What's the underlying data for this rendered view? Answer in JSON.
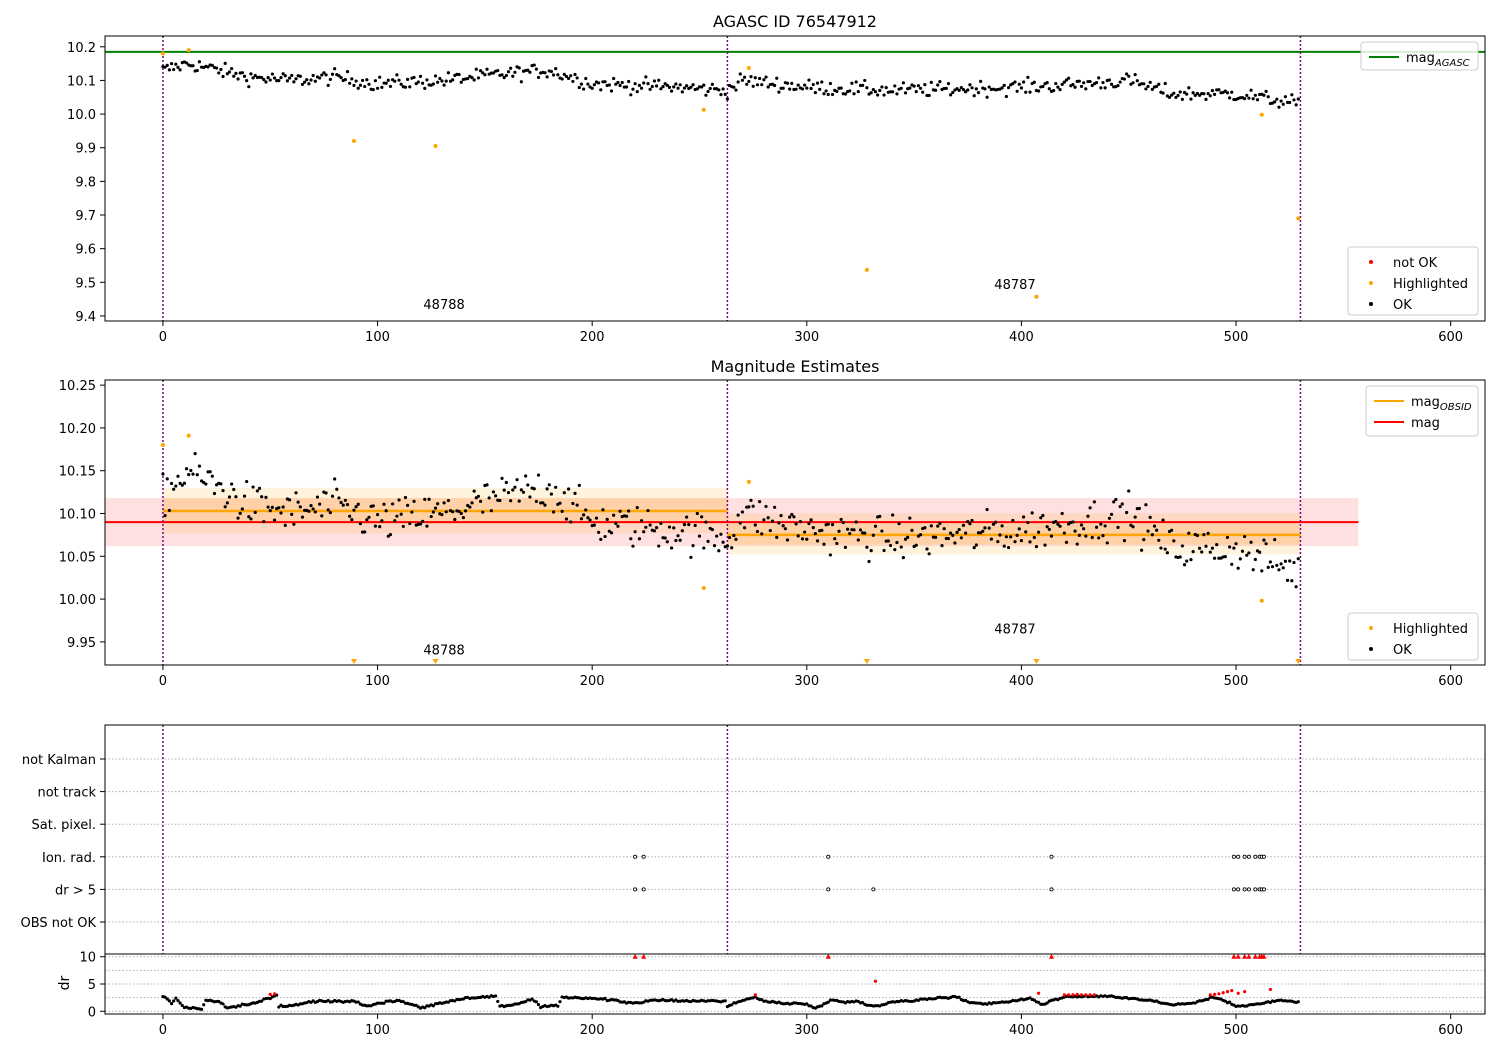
{
  "chart_data": [
    {
      "type": "scatter",
      "title": "AGASC ID 76547912",
      "xlabel": "",
      "ylabel": "",
      "xlim": [
        -27,
        616
      ],
      "ylim": [
        9.385,
        10.232
      ],
      "xticks": [
        "0",
        "100",
        "200",
        "300",
        "400",
        "500",
        "600"
      ],
      "yticks": [
        "9.4",
        "9.5",
        "9.6",
        "9.7",
        "9.8",
        "9.9",
        "10.0",
        "10.1",
        "10.2"
      ],
      "grid": false,
      "legends": [
        {
          "placement": "top-right",
          "entries": [
            {
              "label": "mag",
              "sub": "AGASC",
              "color": "#008000",
              "kind": "line"
            }
          ]
        },
        {
          "placement": "bottom-right",
          "entries": [
            {
              "label": "not OK",
              "color": "#ff0000",
              "kind": "dot"
            },
            {
              "label": "Highlighted",
              "color": "#ffa500",
              "kind": "dot"
            },
            {
              "label": "OK",
              "color": "#000000",
              "kind": "dot"
            }
          ]
        }
      ],
      "reference_lines": [
        {
          "name": "mag_AGASC",
          "y": 10.185,
          "color": "#008000"
        }
      ],
      "obsid_boundaries": [
        0,
        263,
        530
      ],
      "annotations": [
        {
          "text": "48788",
          "x": 131,
          "y": 9.42
        },
        {
          "text": "48787",
          "x": 397,
          "y": 9.48
        }
      ],
      "highlighted_points": [
        {
          "x": 0,
          "y": 10.18
        },
        {
          "x": 12,
          "y": 10.19
        },
        {
          "x": 89,
          "y": 9.92
        },
        {
          "x": 127,
          "y": 9.905
        },
        {
          "x": 252,
          "y": 10.013
        },
        {
          "x": 273,
          "y": 10.137
        },
        {
          "x": 328,
          "y": 9.537
        },
        {
          "x": 407,
          "y": 9.457
        },
        {
          "x": 512,
          "y": 9.998
        },
        {
          "x": 529,
          "y": 9.69
        }
      ],
      "ok_trend": [
        [
          0,
          10.13
        ],
        [
          12,
          10.15
        ],
        [
          40,
          10.11
        ],
        [
          60,
          10.1
        ],
        [
          80,
          10.11
        ],
        [
          100,
          10.09
        ],
        [
          130,
          10.1
        ],
        [
          160,
          10.12
        ],
        [
          180,
          10.13
        ],
        [
          200,
          10.09
        ],
        [
          240,
          10.08
        ],
        [
          263,
          10.07
        ],
        [
          270,
          10.1
        ],
        [
          300,
          10.08
        ],
        [
          340,
          10.07
        ],
        [
          400,
          10.08
        ],
        [
          430,
          10.09
        ],
        [
          450,
          10.1
        ],
        [
          470,
          10.06
        ],
        [
          500,
          10.06
        ],
        [
          530,
          10.03
        ]
      ],
      "ok_point_count": 530
    },
    {
      "type": "scatter",
      "title": "Magnitude Estimates",
      "xlabel": "",
      "ylabel": "",
      "xlim": [
        -27,
        616
      ],
      "ylim": [
        9.923,
        10.256
      ],
      "xticks": [
        "0",
        "100",
        "200",
        "300",
        "400",
        "500",
        "600"
      ],
      "yticks": [
        "9.95",
        "10.00",
        "10.05",
        "10.10",
        "10.15",
        "10.20",
        "10.25"
      ],
      "grid": false,
      "legends": [
        {
          "placement": "top-right",
          "entries": [
            {
              "label": "mag",
              "sub": "OBSID",
              "color": "#ffa500",
              "kind": "line"
            },
            {
              "label": "mag",
              "sub": "",
              "color": "#ff0000",
              "kind": "line"
            }
          ]
        },
        {
          "placement": "bottom-right",
          "entries": [
            {
              "label": "Highlighted",
              "color": "#ffa500",
              "kind": "dot"
            },
            {
              "label": "OK",
              "color": "#000000",
              "kind": "dot"
            }
          ]
        }
      ],
      "mag_line": {
        "y": 10.09,
        "band": [
          10.062,
          10.118
        ],
        "x_range": [
          -27,
          557
        ],
        "color": "#ff0000"
      },
      "obsid_segments": [
        {
          "obsid": "48788",
          "x_range": [
            0,
            263
          ],
          "y": 10.103,
          "band_outer": [
            10.077,
            10.13
          ],
          "band_inner": [
            10.088,
            10.118
          ]
        },
        {
          "obsid": "48787",
          "x_range": [
            263,
            530
          ],
          "y": 10.075,
          "band_outer": [
            10.052,
            10.1
          ],
          "band_inner": [
            10.064,
            10.088
          ]
        }
      ],
      "obsid_boundaries": [
        0,
        263,
        530
      ],
      "annotations": [
        {
          "text": "48788",
          "x": 131,
          "y": 9.935
        },
        {
          "text": "48787",
          "x": 397,
          "y": 9.96
        }
      ],
      "highlighted_points": [
        {
          "x": 0,
          "y": 10.18
        },
        {
          "x": 12,
          "y": 10.191
        },
        {
          "x": 252,
          "y": 10.013
        },
        {
          "x": 273,
          "y": 10.137
        },
        {
          "x": 512,
          "y": 9.998
        }
      ],
      "below_range_markers_x": [
        89,
        127,
        328,
        407,
        529
      ],
      "ok_trend": [
        [
          0,
          10.12
        ],
        [
          12,
          10.15
        ],
        [
          40,
          10.11
        ],
        [
          60,
          10.1
        ],
        [
          80,
          10.11
        ],
        [
          100,
          10.09
        ],
        [
          130,
          10.1
        ],
        [
          160,
          10.12
        ],
        [
          180,
          10.13
        ],
        [
          200,
          10.09
        ],
        [
          240,
          10.08
        ],
        [
          263,
          10.07
        ],
        [
          270,
          10.1
        ],
        [
          300,
          10.08
        ],
        [
          340,
          10.07
        ],
        [
          400,
          10.08
        ],
        [
          430,
          10.09
        ],
        [
          450,
          10.1
        ],
        [
          470,
          10.06
        ],
        [
          500,
          10.06
        ],
        [
          530,
          10.03
        ]
      ],
      "ok_point_count": 530
    },
    {
      "type": "scatter",
      "title": "",
      "xlabel": "",
      "ylabel": "",
      "xlim": [
        -27,
        616
      ],
      "categories": [
        "not Kalman",
        "not track",
        "Sat. pixel.",
        "Ion. rad.",
        "dr > 5",
        "OBS not OK"
      ],
      "grid": true,
      "flags": [
        {
          "category": "not Kalman",
          "x": []
        },
        {
          "category": "not track",
          "x": []
        },
        {
          "category": "Sat. pixel.",
          "x": []
        },
        {
          "category": "Ion. rad.",
          "x": [
            220,
            224,
            310,
            414,
            499,
            501,
            504,
            506,
            509,
            511,
            512,
            513
          ]
        },
        {
          "category": "dr > 5",
          "x": [
            220,
            224,
            310,
            331,
            414,
            499,
            501,
            504,
            506,
            509,
            511,
            512,
            513
          ]
        },
        {
          "category": "OBS not OK",
          "x": []
        }
      ],
      "obsid_boundaries": [
        0,
        263,
        530
      ]
    },
    {
      "type": "scatter",
      "title": "",
      "xlabel": "",
      "ylabel": "dr",
      "xlim": [
        -27,
        616
      ],
      "ylim": [
        -0.5,
        10.5
      ],
      "xticks": [
        "0",
        "100",
        "200",
        "300",
        "400",
        "500",
        "600"
      ],
      "yticks": [
        "0",
        "5",
        "10"
      ],
      "grid": true,
      "clipped_at_10_x": [
        220,
        224,
        310,
        414,
        499,
        501,
        504,
        506,
        509,
        511,
        512,
        513
      ],
      "red_points": [
        {
          "x": 50,
          "y": 3.1
        },
        {
          "x": 52,
          "y": 3.2
        },
        {
          "x": 276,
          "y": 3.0
        },
        {
          "x": 332,
          "y": 5.5
        },
        {
          "x": 408,
          "y": 3.3
        },
        {
          "x": 420,
          "y": 3.0
        },
        {
          "x": 422,
          "y": 3.0
        },
        {
          "x": 424,
          "y": 3.0
        },
        {
          "x": 426,
          "y": 3.1
        },
        {
          "x": 428,
          "y": 3.0
        },
        {
          "x": 430,
          "y": 3.0
        },
        {
          "x": 432,
          "y": 3.0
        },
        {
          "x": 434,
          "y": 3.0
        },
        {
          "x": 488,
          "y": 3.0
        },
        {
          "x": 490,
          "y": 3.1
        },
        {
          "x": 492,
          "y": 3.2
        },
        {
          "x": 494,
          "y": 3.4
        },
        {
          "x": 496,
          "y": 3.6
        },
        {
          "x": 498,
          "y": 3.8
        },
        {
          "x": 501,
          "y": 3.3
        },
        {
          "x": 504,
          "y": 3.6
        },
        {
          "x": 516,
          "y": 4.0
        }
      ],
      "ok_trend": [
        [
          0,
          2.8
        ],
        [
          4,
          1.5
        ],
        [
          6,
          2.4
        ],
        [
          10,
          0.7
        ],
        [
          14,
          0.6
        ],
        [
          18,
          0.4
        ],
        [
          20,
          2.0
        ],
        [
          26,
          1.8
        ],
        [
          30,
          0.6
        ],
        [
          36,
          1.0
        ],
        [
          40,
          1.2
        ],
        [
          50,
          2.5
        ],
        [
          53,
          3.0
        ],
        [
          54,
          0.9
        ],
        [
          60,
          1.0
        ],
        [
          70,
          1.8
        ],
        [
          80,
          1.9
        ],
        [
          90,
          1.8
        ],
        [
          96,
          0.9
        ],
        [
          100,
          1.5
        ],
        [
          110,
          2.0
        ],
        [
          120,
          0.7
        ],
        [
          130,
          1.5
        ],
        [
          140,
          2.4
        ],
        [
          150,
          2.6
        ],
        [
          155,
          2.8
        ],
        [
          157,
          0.9
        ],
        [
          166,
          1.4
        ],
        [
          172,
          2.2
        ],
        [
          176,
          0.8
        ],
        [
          184,
          1.0
        ],
        [
          186,
          2.6
        ],
        [
          200,
          2.4
        ],
        [
          210,
          2.0
        ],
        [
          218,
          1.5
        ],
        [
          230,
          2.0
        ],
        [
          250,
          1.9
        ],
        [
          262,
          1.9
        ],
        [
          263,
          0.9
        ],
        [
          270,
          2.0
        ],
        [
          276,
          2.6
        ],
        [
          280,
          1.8
        ],
        [
          290,
          1.5
        ],
        [
          300,
          1.3
        ],
        [
          304,
          0.6
        ],
        [
          308,
          1.2
        ],
        [
          312,
          2.3
        ],
        [
          318,
          1.6
        ],
        [
          324,
          1.8
        ],
        [
          328,
          1.2
        ],
        [
          333,
          1.0
        ],
        [
          336,
          1.2
        ],
        [
          340,
          1.8
        ],
        [
          350,
          2.0
        ],
        [
          360,
          2.4
        ],
        [
          370,
          2.6
        ],
        [
          376,
          1.6
        ],
        [
          385,
          1.4
        ],
        [
          398,
          2.0
        ],
        [
          404,
          2.4
        ],
        [
          410,
          1.2
        ],
        [
          414,
          2.0
        ],
        [
          420,
          2.6
        ],
        [
          440,
          2.8
        ],
        [
          460,
          2.0
        ],
        [
          470,
          1.2
        ],
        [
          480,
          1.5
        ],
        [
          490,
          2.6
        ],
        [
          500,
          1.0
        ],
        [
          510,
          1.3
        ],
        [
          520,
          2.0
        ],
        [
          530,
          1.6
        ]
      ],
      "ok_point_count": 530
    }
  ]
}
